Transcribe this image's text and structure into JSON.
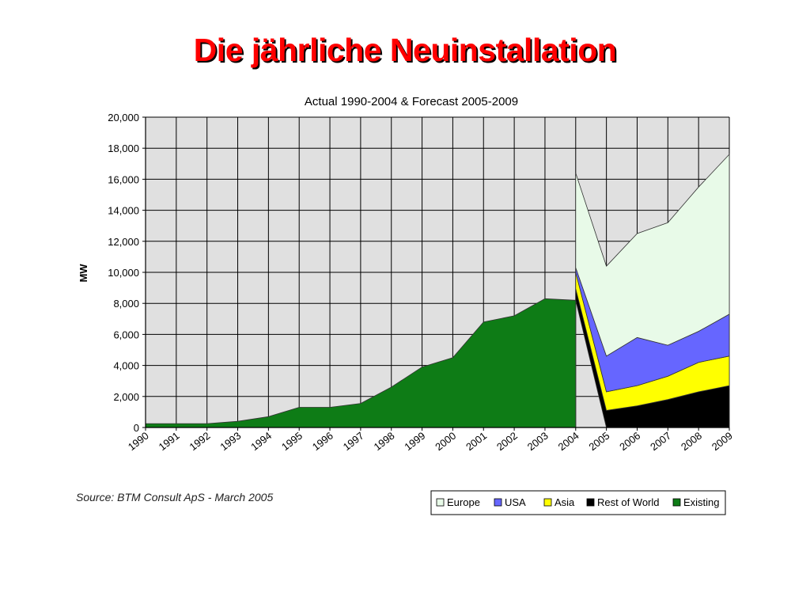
{
  "slide": {
    "title": "Die jährliche Neuinstallation"
  },
  "chart_data": {
    "type": "area",
    "title": "Actual 1990-2004 & Forecast 2005-2009",
    "ylabel": "MW",
    "xlabel": "",
    "ylim": [
      0,
      20000
    ],
    "yticks": [
      0,
      2000,
      4000,
      6000,
      8000,
      10000,
      12000,
      14000,
      16000,
      18000,
      20000
    ],
    "ytick_labels": [
      "0",
      "2,000",
      "4,000",
      "6,000",
      "8,000",
      "10,000",
      "12,000",
      "14,000",
      "16,000",
      "18,000",
      "20,000"
    ],
    "categories": [
      "1990",
      "1991",
      "1992",
      "1993",
      "1994",
      "1995",
      "1996",
      "1997",
      "1998",
      "1999",
      "2000",
      "2001",
      "2002",
      "2003",
      "2004",
      "2005",
      "2006",
      "2007",
      "2008",
      "2009"
    ],
    "grid": true,
    "stacked": true,
    "series": [
      {
        "name": "Existing",
        "color": "#0e7c16",
        "values": [
          250,
          250,
          250,
          400,
          700,
          1300,
          1300,
          1550,
          2600,
          3900,
          4500,
          6800,
          7200,
          8300,
          8200,
          null,
          null,
          null,
          null,
          null
        ]
      },
      {
        "name": "Rest of World",
        "color": "#000000",
        "values": [
          null,
          null,
          null,
          null,
          null,
          null,
          null,
          null,
          null,
          null,
          null,
          null,
          null,
          null,
          750,
          1100,
          1400,
          1800,
          2300,
          2700
        ]
      },
      {
        "name": "Asia",
        "color": "#ffff00",
        "values": [
          null,
          null,
          null,
          null,
          null,
          null,
          null,
          null,
          null,
          null,
          null,
          null,
          null,
          null,
          1050,
          1200,
          1300,
          1500,
          1900,
          1900
        ]
      },
      {
        "name": "USA",
        "color": "#6666ff",
        "values": [
          null,
          null,
          null,
          null,
          null,
          null,
          null,
          null,
          null,
          null,
          null,
          null,
          null,
          null,
          300,
          2300,
          3100,
          2000,
          2000,
          2700
        ]
      },
      {
        "name": "Europe",
        "color": "#e8fae8",
        "values": [
          null,
          null,
          null,
          null,
          null,
          null,
          null,
          null,
          null,
          null,
          null,
          null,
          null,
          null,
          6100,
          5800,
          6700,
          7900,
          9300,
          10300
        ]
      }
    ],
    "legend": {
      "placement": "bottom-right",
      "entries": [
        {
          "label": "Europe",
          "color": "#e8fae8"
        },
        {
          "label": "USA",
          "color": "#6666ff"
        },
        {
          "label": "Asia",
          "color": "#ffff00"
        },
        {
          "label": "Rest of World",
          "color": "#000000"
        },
        {
          "label": "Existing",
          "color": "#0e7c16"
        }
      ]
    },
    "source": "Source: BTM Consult ApS - March 2005"
  }
}
